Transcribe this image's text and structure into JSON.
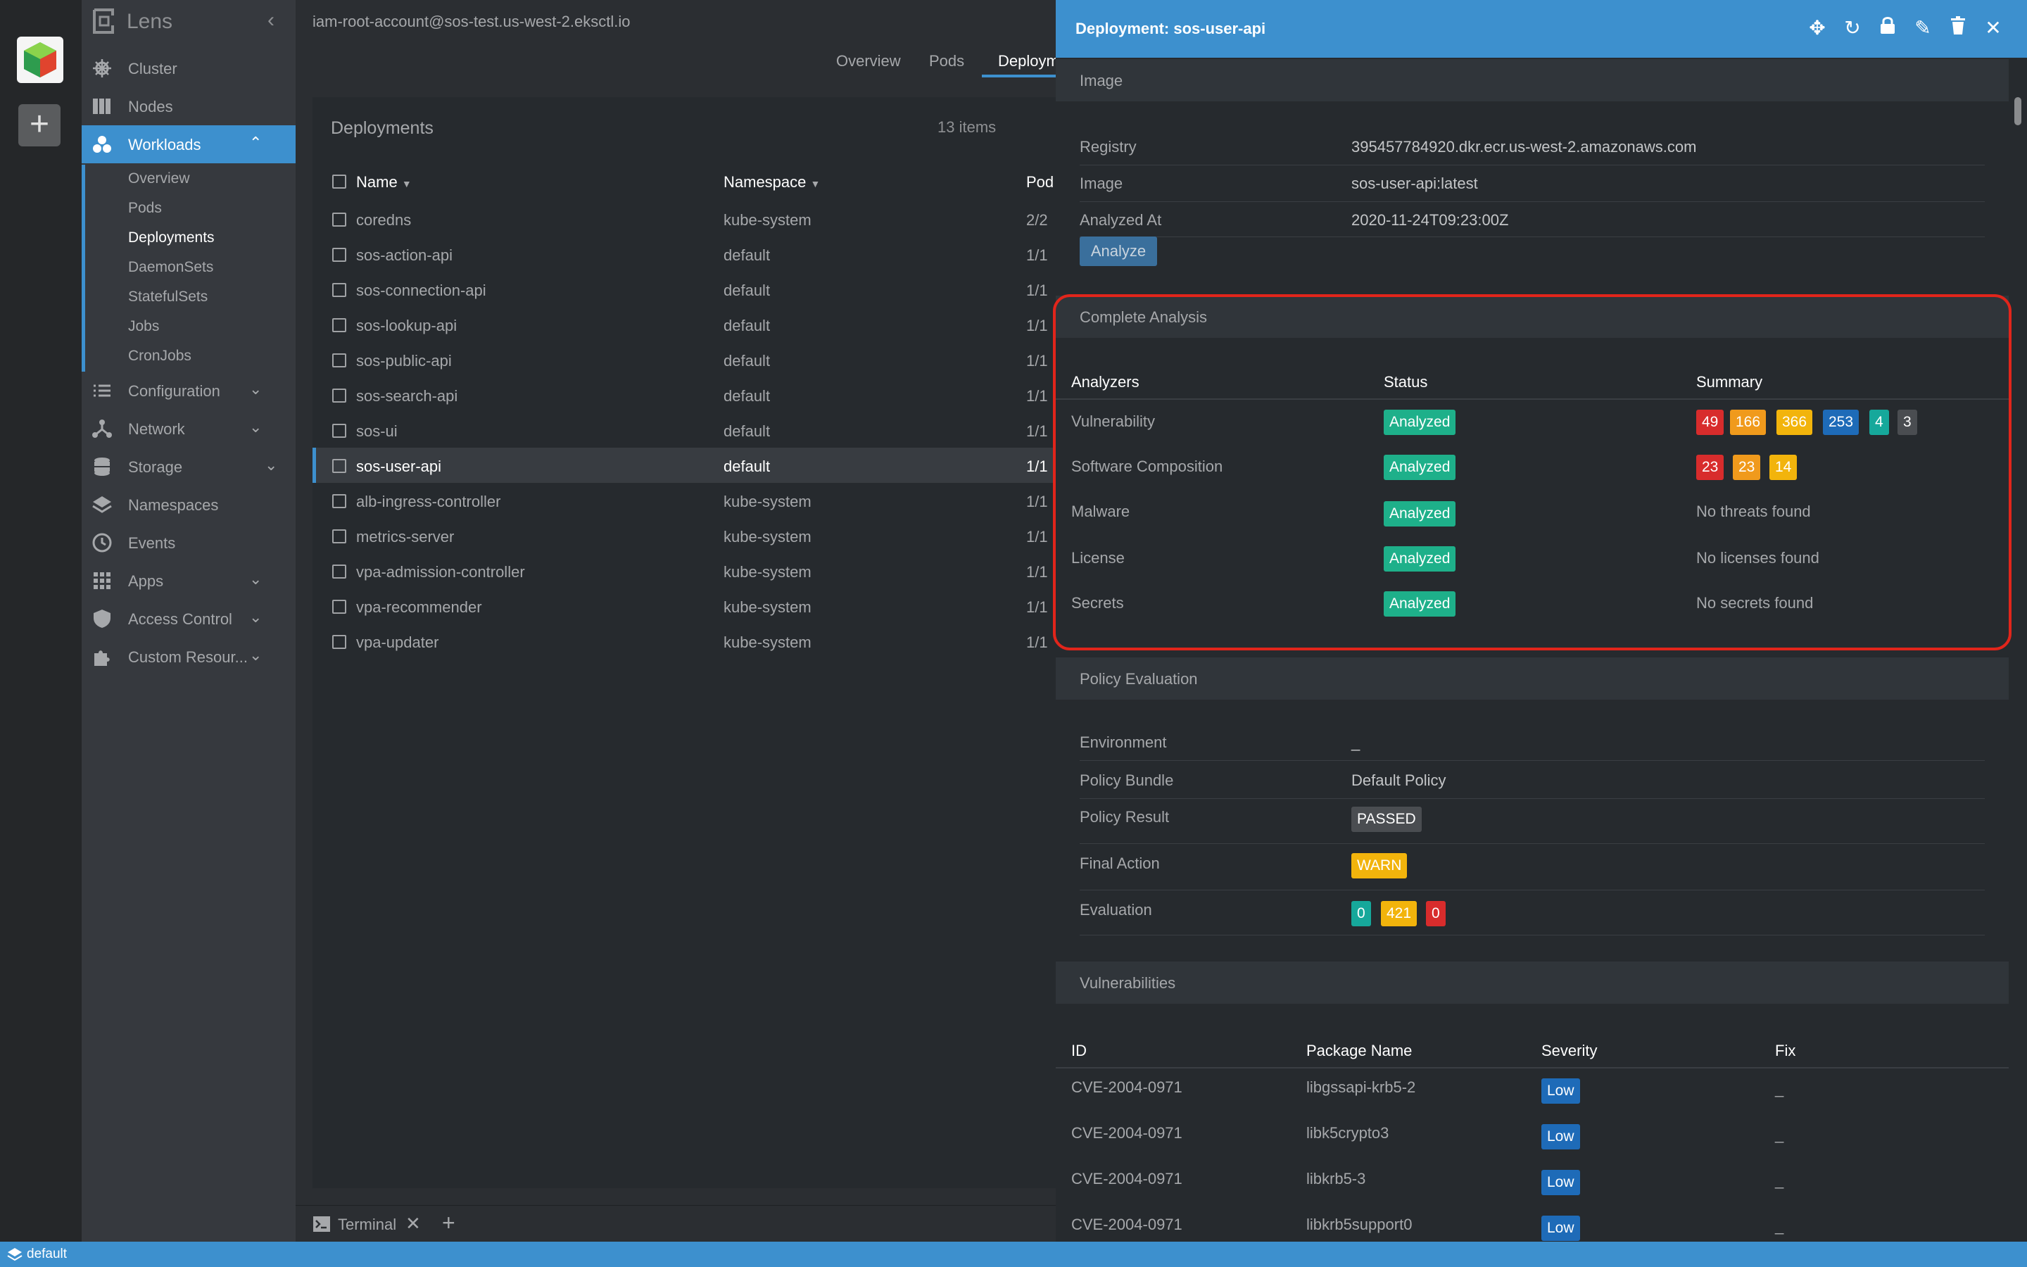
{
  "app": {
    "name": "Lens"
  },
  "cluster_rail": {
    "add_label": "+"
  },
  "context": "iam-root-account@sos-test.us-west-2.eksctl.io",
  "sidebar": {
    "items": [
      {
        "label": "Cluster",
        "icon": "helm-wheel-icon"
      },
      {
        "label": "Nodes",
        "icon": "nodes-icon"
      },
      {
        "label": "Workloads",
        "icon": "workloads-icon",
        "active": true
      },
      {
        "label": "Configuration",
        "icon": "list-icon"
      },
      {
        "label": "Network",
        "icon": "network-icon"
      },
      {
        "label": "Storage",
        "icon": "database-icon"
      },
      {
        "label": "Namespaces",
        "icon": "layers-icon"
      },
      {
        "label": "Events",
        "icon": "clock-icon"
      },
      {
        "label": "Apps",
        "icon": "apps-grid-icon"
      },
      {
        "label": "Access Control",
        "icon": "shield-icon"
      },
      {
        "label": "Custom Resour...",
        "icon": "puzzle-icon"
      }
    ],
    "workloads_sub": [
      "Overview",
      "Pods",
      "Deployments",
      "DaemonSets",
      "StatefulSets",
      "Jobs",
      "CronJobs"
    ]
  },
  "tabs": [
    "Overview",
    "Pods",
    "Deploym"
  ],
  "deployments": {
    "title": "Deployments",
    "count": "13 items",
    "columns": [
      "Name",
      "Namespace",
      "Pod"
    ],
    "rows": [
      {
        "name": "coredns",
        "namespace": "kube-system",
        "pods": "2/2"
      },
      {
        "name": "sos-action-api",
        "namespace": "default",
        "pods": "1/1"
      },
      {
        "name": "sos-connection-api",
        "namespace": "default",
        "pods": "1/1"
      },
      {
        "name": "sos-lookup-api",
        "namespace": "default",
        "pods": "1/1"
      },
      {
        "name": "sos-public-api",
        "namespace": "default",
        "pods": "1/1"
      },
      {
        "name": "sos-search-api",
        "namespace": "default",
        "pods": "1/1"
      },
      {
        "name": "sos-ui",
        "namespace": "default",
        "pods": "1/1"
      },
      {
        "name": "sos-user-api",
        "namespace": "default",
        "pods": "1/1",
        "selected": true
      },
      {
        "name": "alb-ingress-controller",
        "namespace": "kube-system",
        "pods": "1/1"
      },
      {
        "name": "metrics-server",
        "namespace": "kube-system",
        "pods": "1/1"
      },
      {
        "name": "vpa-admission-controller",
        "namespace": "kube-system",
        "pods": "1/1"
      },
      {
        "name": "vpa-recommender",
        "namespace": "kube-system",
        "pods": "1/1"
      },
      {
        "name": "vpa-updater",
        "namespace": "kube-system",
        "pods": "1/1"
      }
    ]
  },
  "terminal": {
    "label": "Terminal"
  },
  "status_bar": {
    "namespace": "default"
  },
  "drawer": {
    "title": "Deployment: sos-user-api",
    "image_section": {
      "heading": "Image",
      "fields": [
        {
          "label": "Registry",
          "value": "395457784920.dkr.ecr.us-west-2.amazonaws.com"
        },
        {
          "label": "Image",
          "value": "sos-user-api:latest"
        },
        {
          "label": "Analyzed At",
          "value": "2020-11-24T09:23:00Z"
        }
      ],
      "analyze_button": "Analyze"
    },
    "analysis_section": {
      "heading": "Complete Analysis",
      "columns": [
        "Analyzers",
        "Status",
        "Summary"
      ],
      "rows": [
        {
          "name": "Vulnerability",
          "status": "Analyzed"
        },
        {
          "name": "Software Composition",
          "status": "Analyzed"
        },
        {
          "name": "Malware",
          "status": "Analyzed",
          "summary": "No threats found"
        },
        {
          "name": "License",
          "status": "Analyzed",
          "summary": "No licenses found"
        },
        {
          "name": "Secrets",
          "status": "Analyzed",
          "summary": "No secrets found"
        }
      ],
      "vuln_counts": [
        "49",
        "166",
        "366",
        "253",
        "4",
        "3"
      ],
      "composition_counts": [
        "23",
        "23",
        "14"
      ],
      "colors": {
        "critical": "#d82c2c",
        "high": "#f09a1c",
        "medium": "#f2b40c",
        "low": "#1e6bb8",
        "negligible": "#16a89b",
        "unknown": "#4a4d51",
        "analyzed": "#1eb08a"
      }
    },
    "policy_section": {
      "heading": "Policy Evaluation",
      "environment_label": "Environment",
      "environment_value": "_",
      "bundle_label": "Policy Bundle",
      "bundle_value": "Default Policy",
      "result_label": "Policy Result",
      "result_value": "PASSED",
      "action_label": "Final Action",
      "action_value": "WARN",
      "evaluation_label": "Evaluation",
      "evaluation_counts": [
        "0",
        "421",
        "0"
      ]
    },
    "vulns_section": {
      "heading": "Vulnerabilities",
      "columns": [
        "ID",
        "Package Name",
        "Severity",
        "Fix"
      ],
      "rows": [
        {
          "id": "CVE-2004-0971",
          "package": "libgssapi-krb5-2",
          "severity": "Low",
          "fix": "_"
        },
        {
          "id": "CVE-2004-0971",
          "package": "libk5crypto3",
          "severity": "Low",
          "fix": "_"
        },
        {
          "id": "CVE-2004-0971",
          "package": "libkrb5-3",
          "severity": "Low",
          "fix": "_"
        },
        {
          "id": "CVE-2004-0971",
          "package": "libkrb5support0",
          "severity": "Low",
          "fix": "_"
        }
      ]
    }
  }
}
